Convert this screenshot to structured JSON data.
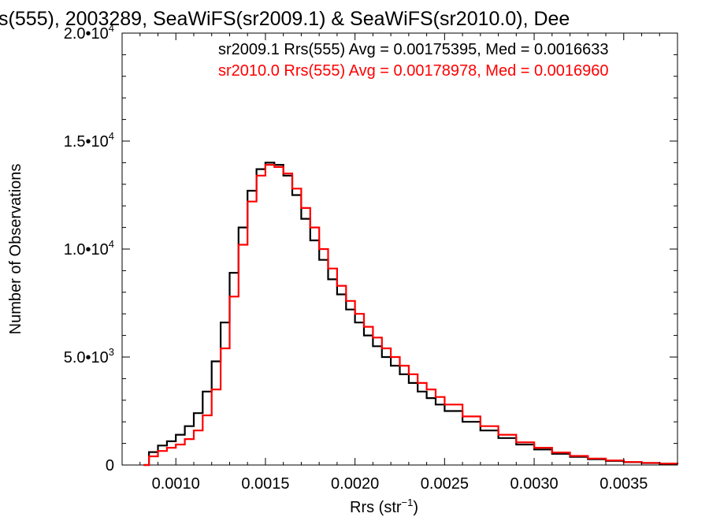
{
  "chart_data": {
    "type": "line",
    "step": true,
    "title": "s(555), 2003289, SeaWiFS(sr2009.1) & SeaWiFS(sr2010.0), Dee",
    "xlabel": "Rrs (str",
    "xlabel_sup": "−1",
    "xlabel_end": ")",
    "ylabel": "Number of Observations",
    "xlim": [
      0.0007,
      0.0038
    ],
    "ylim": [
      0,
      20000
    ],
    "x_ticks": [
      {
        "value": 0.001,
        "label": "0.0010"
      },
      {
        "value": 0.0015,
        "label": "0.0015"
      },
      {
        "value": 0.002,
        "label": "0.0020"
      },
      {
        "value": 0.0025,
        "label": "0.0025"
      },
      {
        "value": 0.003,
        "label": "0.0030"
      },
      {
        "value": 0.0035,
        "label": "0.0035"
      }
    ],
    "y_ticks": [
      {
        "value": 0,
        "label": "0",
        "sup": ""
      },
      {
        "value": 5000,
        "label": "5.0•10",
        "sup": "3"
      },
      {
        "value": 10000,
        "label": "1.0•10",
        "sup": "4"
      },
      {
        "value": 15000,
        "label": "1.5•10",
        "sup": "4"
      },
      {
        "value": 20000,
        "label": "2.0•10",
        "sup": "4"
      }
    ],
    "annotations": [
      {
        "text": "sr2009.1 Rrs(555) Avg = 0.00175395, Med = 0.0016633",
        "color": "#000000"
      },
      {
        "text": "sr2010.0 Rrs(555) Avg = 0.00178978, Med = 0.0016960",
        "color": "#ff0000"
      }
    ],
    "series": [
      {
        "color": "#000000",
        "x": [
          0.00082,
          0.00085,
          0.0009,
          0.00095,
          0.001,
          0.00105,
          0.0011,
          0.00115,
          0.0012,
          0.00125,
          0.0013,
          0.00135,
          0.0014,
          0.00145,
          0.0015,
          0.00155,
          0.0016,
          0.00165,
          0.0017,
          0.00175,
          0.0018,
          0.00185,
          0.0019,
          0.00195,
          0.002,
          0.00205,
          0.0021,
          0.00215,
          0.0022,
          0.00225,
          0.0023,
          0.00235,
          0.0024,
          0.00245,
          0.0025,
          0.0026,
          0.0027,
          0.0028,
          0.0029,
          0.003,
          0.0031,
          0.0032,
          0.0033,
          0.0034,
          0.0035,
          0.0036,
          0.0037,
          0.0038
        ],
        "y": [
          0,
          600,
          900,
          1100,
          1400,
          1800,
          2400,
          3400,
          4800,
          6600,
          8900,
          11000,
          12700,
          13700,
          14000,
          13900,
          13400,
          12500,
          11400,
          10400,
          9500,
          8600,
          7900,
          7200,
          6600,
          6000,
          5500,
          5000,
          4600,
          4200,
          3800,
          3400,
          3100,
          2800,
          2500,
          2000,
          1600,
          1250,
          950,
          720,
          520,
          380,
          270,
          190,
          130,
          90,
          60,
          40
        ]
      },
      {
        "color": "#ff0000",
        "x": [
          0.00082,
          0.00085,
          0.0009,
          0.00095,
          0.001,
          0.00105,
          0.0011,
          0.00115,
          0.0012,
          0.00125,
          0.0013,
          0.00135,
          0.0014,
          0.00145,
          0.0015,
          0.00155,
          0.0016,
          0.00165,
          0.0017,
          0.00175,
          0.0018,
          0.00185,
          0.0019,
          0.00195,
          0.002,
          0.00205,
          0.0021,
          0.00215,
          0.0022,
          0.00225,
          0.0023,
          0.00235,
          0.0024,
          0.00245,
          0.0025,
          0.0026,
          0.0027,
          0.0028,
          0.0029,
          0.003,
          0.0031,
          0.0032,
          0.0033,
          0.0034,
          0.0035,
          0.0036,
          0.0037,
          0.0038
        ],
        "y": [
          0,
          400,
          650,
          800,
          950,
          1200,
          1600,
          2300,
          3500,
          5400,
          7800,
          10200,
          12200,
          13400,
          13900,
          13800,
          13500,
          12800,
          11900,
          11000,
          10000,
          9100,
          8300,
          7600,
          7000,
          6400,
          5900,
          5400,
          5000,
          4600,
          4200,
          3800,
          3500,
          3150,
          2800,
          2250,
          1800,
          1400,
          1050,
          800,
          580,
          420,
          300,
          210,
          140,
          100,
          65,
          45
        ]
      }
    ]
  }
}
